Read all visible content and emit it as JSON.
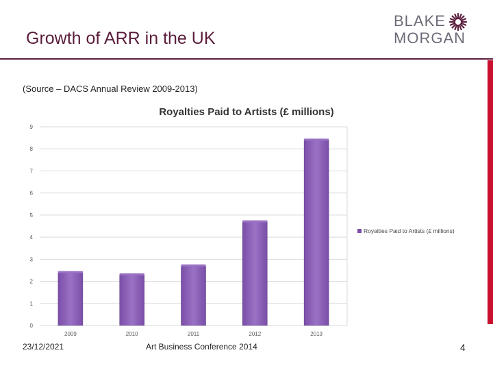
{
  "slide": {
    "title": "Growth of ARR in the UK",
    "source": "(Source – DACS Annual Review 2009-2013)",
    "logo": {
      "line1": "BLAKE",
      "line2": "MORGAN"
    },
    "footer": {
      "date": "23/12/2021",
      "event": "Art Business Conference 2014",
      "page": "4"
    }
  },
  "colors": {
    "title": "#5a1e3c",
    "accent_bar": "#c8102e",
    "bar_fill": "#7a4ea8",
    "bar_top": "#9a72c4",
    "grid": "#d9d9d9"
  },
  "chart_data": {
    "type": "bar",
    "title": "Royalties Paid to Artists (£ millions)",
    "categories": [
      "2009",
      "2010",
      "2011",
      "2012",
      "2013"
    ],
    "series": [
      {
        "name": "Royalties Paid to Artists (£ millions)",
        "values": [
          2.4,
          2.3,
          2.7,
          4.7,
          8.4
        ]
      }
    ],
    "ylim": [
      0,
      9
    ],
    "yticks": [
      "0",
      "1",
      "2",
      "3",
      "4",
      "5",
      "6",
      "7",
      "8",
      "9"
    ],
    "grid": true,
    "legend_position": "right"
  }
}
